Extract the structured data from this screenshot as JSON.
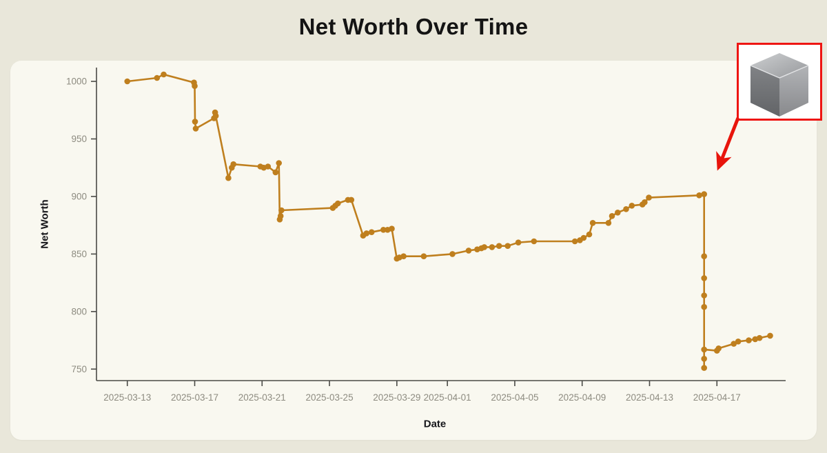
{
  "page": {
    "title": "Net Worth Over Time"
  },
  "colors": {
    "page_background": "#e9e7da",
    "panel_background": "#f9f8f0",
    "line": "#bf7f1e",
    "marker": "#bf7f1e",
    "spine": "#4a4a46",
    "tick_label": "#8d8b80",
    "title_text": "#141414",
    "axis_label_text": "#16161a",
    "arrow_red": "#e8150c",
    "image_border_red": "#ee1512"
  },
  "annotation": {
    "image_name": "metal-cube-photo",
    "arrow_name": "red-arrow-pointing-to-drop"
  },
  "chart_data": {
    "type": "line",
    "title": "Net Worth Over Time",
    "xlabel": "Date",
    "ylabel": "Net Worth",
    "series_name": "Net Worth",
    "grid": false,
    "legend": "none",
    "x_axis": {
      "min": -1.83,
      "max": 39.08,
      "ticks": [
        {
          "t": 0,
          "label": "2025-03-13"
        },
        {
          "t": 4,
          "label": "2025-03-17"
        },
        {
          "t": 8,
          "label": "2025-03-21"
        },
        {
          "t": 12,
          "label": "2025-03-25"
        },
        {
          "t": 16,
          "label": "2025-03-29"
        },
        {
          "t": 19,
          "label": "2025-04-01"
        },
        {
          "t": 23,
          "label": "2025-04-05"
        },
        {
          "t": 27,
          "label": "2025-04-09"
        },
        {
          "t": 31,
          "label": "2025-04-13"
        },
        {
          "t": 35,
          "label": "2025-04-17"
        }
      ]
    },
    "y_axis": {
      "min": 740,
      "max": 1012,
      "ticks": [
        750,
        800,
        850,
        900,
        950,
        1000
      ]
    },
    "points": [
      {
        "date": "2025-03-13",
        "t": 0.0,
        "value": 1000
      },
      {
        "date": "2025-03-15",
        "t": 1.76,
        "value": 1003
      },
      {
        "date": "2025-03-15",
        "t": 2.16,
        "value": 1006
      },
      {
        "date": "2025-03-17",
        "t": 3.96,
        "value": 999
      },
      {
        "date": "2025-03-17",
        "t": 4.0,
        "value": 996
      },
      {
        "date": "2025-03-17",
        "t": 4.02,
        "value": 965
      },
      {
        "date": "2025-03-17",
        "t": 4.06,
        "value": 959
      },
      {
        "date": "2025-03-18",
        "t": 5.15,
        "value": 968
      },
      {
        "date": "2025-03-18",
        "t": 5.21,
        "value": 973
      },
      {
        "date": "2025-03-18",
        "t": 5.25,
        "value": 970
      },
      {
        "date": "2025-03-19",
        "t": 6.0,
        "value": 916
      },
      {
        "date": "2025-03-19",
        "t": 6.2,
        "value": 925
      },
      {
        "date": "2025-03-19",
        "t": 6.3,
        "value": 928
      },
      {
        "date": "2025-03-21",
        "t": 7.9,
        "value": 926
      },
      {
        "date": "2025-03-21",
        "t": 8.1,
        "value": 925
      },
      {
        "date": "2025-03-21",
        "t": 8.35,
        "value": 926
      },
      {
        "date": "2025-03-22",
        "t": 8.8,
        "value": 921
      },
      {
        "date": "2025-03-22",
        "t": 9.0,
        "value": 929
      },
      {
        "date": "2025-03-22",
        "t": 9.05,
        "value": 880
      },
      {
        "date": "2025-03-22",
        "t": 9.1,
        "value": 883
      },
      {
        "date": "2025-03-22",
        "t": 9.15,
        "value": 888
      },
      {
        "date": "2025-03-25",
        "t": 12.2,
        "value": 890
      },
      {
        "date": "2025-03-25",
        "t": 12.35,
        "value": 892
      },
      {
        "date": "2025-03-25",
        "t": 12.5,
        "value": 894
      },
      {
        "date": "2025-03-26",
        "t": 13.1,
        "value": 897
      },
      {
        "date": "2025-03-26",
        "t": 13.3,
        "value": 897
      },
      {
        "date": "2025-03-27",
        "t": 14.0,
        "value": 866
      },
      {
        "date": "2025-03-27",
        "t": 14.2,
        "value": 868
      },
      {
        "date": "2025-03-27",
        "t": 14.5,
        "value": 869
      },
      {
        "date": "2025-03-28",
        "t": 15.2,
        "value": 871
      },
      {
        "date": "2025-03-28",
        "t": 15.45,
        "value": 871
      },
      {
        "date": "2025-03-28",
        "t": 15.7,
        "value": 872
      },
      {
        "date": "2025-03-29",
        "t": 16.0,
        "value": 846
      },
      {
        "date": "2025-03-29",
        "t": 16.15,
        "value": 847
      },
      {
        "date": "2025-03-29",
        "t": 16.4,
        "value": 848
      },
      {
        "date": "2025-03-30",
        "t": 17.6,
        "value": 848
      },
      {
        "date": "2025-04-01",
        "t": 19.3,
        "value": 850
      },
      {
        "date": "2025-04-02",
        "t": 20.26,
        "value": 853
      },
      {
        "date": "2025-04-03",
        "t": 20.77,
        "value": 854
      },
      {
        "date": "2025-04-03",
        "t": 21.02,
        "value": 855
      },
      {
        "date": "2025-04-03",
        "t": 21.19,
        "value": 856
      },
      {
        "date": "2025-04-04",
        "t": 21.65,
        "value": 856
      },
      {
        "date": "2025-04-04",
        "t": 22.07,
        "value": 857
      },
      {
        "date": "2025-04-05",
        "t": 22.58,
        "value": 857
      },
      {
        "date": "2025-04-05",
        "t": 23.21,
        "value": 860
      },
      {
        "date": "2025-04-06",
        "t": 24.14,
        "value": 861
      },
      {
        "date": "2025-04-08",
        "t": 26.57,
        "value": 861
      },
      {
        "date": "2025-04-08",
        "t": 26.87,
        "value": 862
      },
      {
        "date": "2025-04-09",
        "t": 27.09,
        "value": 864
      },
      {
        "date": "2025-04-09",
        "t": 27.42,
        "value": 867
      },
      {
        "date": "2025-04-10",
        "t": 27.63,
        "value": 877
      },
      {
        "date": "2025-04-10",
        "t": 28.56,
        "value": 877
      },
      {
        "date": "2025-04-10",
        "t": 28.77,
        "value": 883
      },
      {
        "date": "2025-04-11",
        "t": 29.11,
        "value": 886
      },
      {
        "date": "2025-04-11",
        "t": 29.61,
        "value": 889
      },
      {
        "date": "2025-04-12",
        "t": 29.95,
        "value": 892
      },
      {
        "date": "2025-04-12",
        "t": 30.58,
        "value": 893
      },
      {
        "date": "2025-04-12",
        "t": 30.71,
        "value": 895
      },
      {
        "date": "2025-04-13",
        "t": 30.96,
        "value": 899
      },
      {
        "date": "2025-04-16",
        "t": 33.95,
        "value": 901
      },
      {
        "date": "2025-04-16",
        "t": 34.24,
        "value": 902
      },
      {
        "date": "2025-04-16",
        "t": 34.24,
        "value": 848
      },
      {
        "date": "2025-04-16",
        "t": 34.24,
        "value": 829
      },
      {
        "date": "2025-04-16",
        "t": 34.24,
        "value": 814
      },
      {
        "date": "2025-04-16",
        "t": 34.24,
        "value": 804
      },
      {
        "date": "2025-04-16",
        "t": 34.24,
        "value": 751
      },
      {
        "date": "2025-04-16",
        "t": 34.24,
        "value": 759
      },
      {
        "date": "2025-04-16",
        "t": 34.24,
        "value": 767
      },
      {
        "date": "2025-04-17",
        "t": 35.0,
        "value": 766
      },
      {
        "date": "2025-04-17",
        "t": 35.1,
        "value": 768
      },
      {
        "date": "2025-04-18",
        "t": 36.0,
        "value": 772
      },
      {
        "date": "2025-04-18",
        "t": 36.26,
        "value": 774
      },
      {
        "date": "2025-04-19",
        "t": 36.89,
        "value": 775
      },
      {
        "date": "2025-04-19",
        "t": 37.27,
        "value": 776
      },
      {
        "date": "2025-04-19",
        "t": 37.53,
        "value": 777
      },
      {
        "date": "2025-04-20",
        "t": 38.16,
        "value": 779
      }
    ]
  }
}
